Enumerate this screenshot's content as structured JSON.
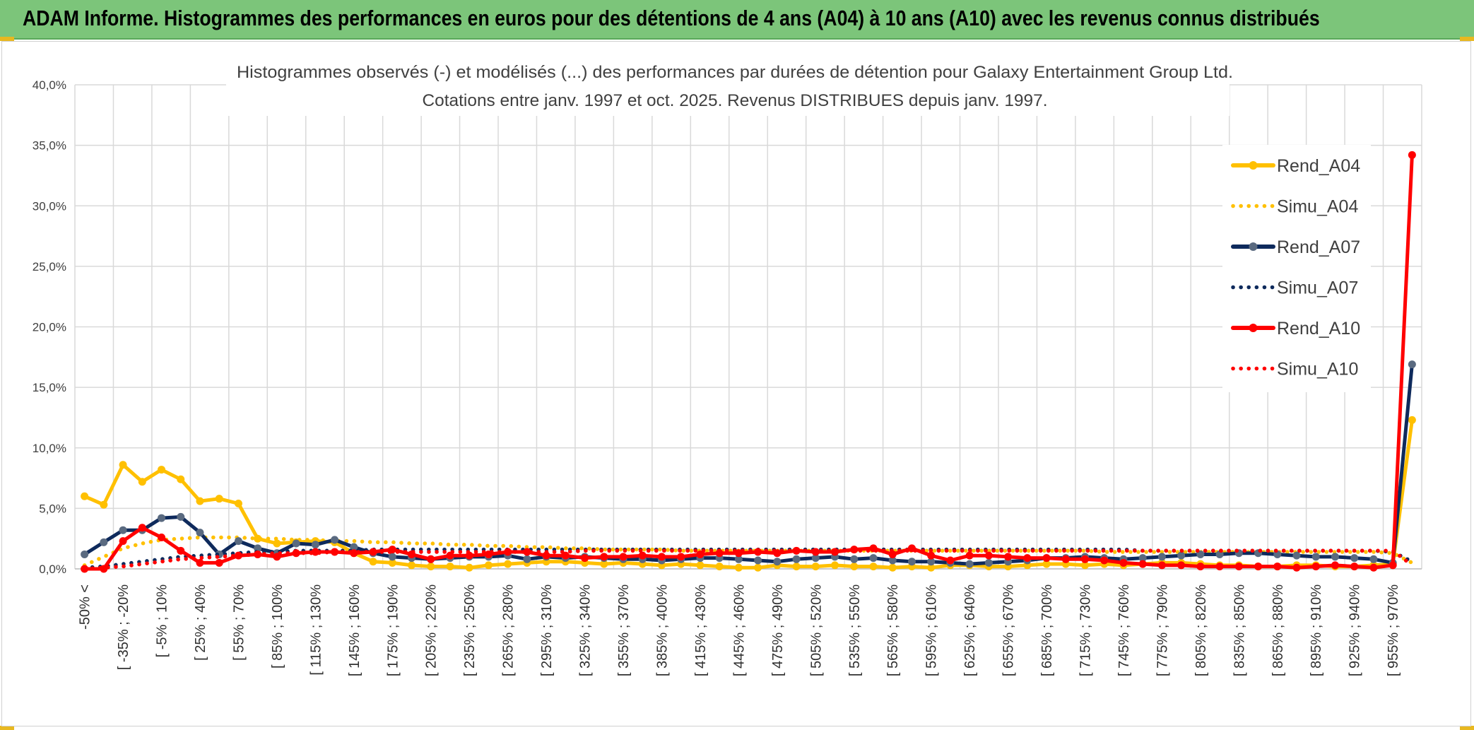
{
  "banner": {
    "title": "ADAM Informe. Histogrammes des performances en euros pour des détentions de 4 ans (A04) à 10 ans (A10) avec les revenus connus distribués"
  },
  "colors": {
    "banner_bg": "#7cc57a",
    "A04": "#ffc000",
    "A07": "#0e2a5c",
    "A07_marker": "#5a6a80",
    "A10": "#ff0000",
    "grid": "#d9d9d9"
  },
  "chart_data": {
    "type": "line",
    "title": "Histogrammes observés (-) et modélisés (...) des performances par durées de détention pour Galaxy Entertainment Group Ltd.",
    "subtitle": "Cotations entre janv. 1997 et oct. 2025. Revenus DISTRIBUES depuis janv. 1997.",
    "ylim": [
      0,
      40
    ],
    "yticks": [
      "0,0%",
      "5,0%",
      "10,0%",
      "15,0%",
      "20,0%",
      "25,0%",
      "30,0%",
      "35,0%",
      "40,0%"
    ],
    "xticklabels": [
      "-50% <",
      "[ -35% ; -20%",
      "[ -5% ; 10%",
      "[ 25% ; 40%",
      "[ 55% ; 70%",
      "[ 85% ; 100%",
      "[ 115% ; 130%",
      "[ 145% ; 160%",
      "[ 175% ; 190%",
      "[ 205% ; 220%",
      "[ 235% ; 250%",
      "[ 265% ; 280%",
      "[ 295% ; 310%",
      "[ 325% ; 340%",
      "[ 355% ; 370%",
      "[ 385% ; 400%",
      "[ 415% ; 430%",
      "[ 445% ; 460%",
      "[ 475% ; 490%",
      "[ 505% ; 520%",
      "[ 535% ; 550%",
      "[ 565% ; 580%",
      "[ 595% ; 610%",
      "[ 625% ; 640%",
      "[ 655% ; 670%",
      "[ 685% ; 700%",
      "[ 715% ; 730%",
      "[ 745% ; 760%",
      "[ 775% ; 790%",
      "[ 805% ; 820%",
      "[ 835% ; 850%",
      "[ 865% ; 880%",
      "[ 895% ; 910%",
      "[ 925% ; 940%",
      "[ 955% ; 970%"
    ],
    "n_points": 70,
    "series": [
      {
        "name": "Rend_A04",
        "style": "solid",
        "color": "#ffc000",
        "values": [
          6.0,
          5.3,
          8.6,
          7.2,
          8.2,
          7.4,
          5.6,
          5.8,
          5.4,
          2.5,
          2.1,
          2.2,
          2.3,
          2.2,
          1.3,
          0.6,
          0.5,
          0.3,
          0.2,
          0.2,
          0.1,
          0.3,
          0.4,
          0.5,
          0.6,
          0.6,
          0.5,
          0.4,
          0.5,
          0.4,
          0.3,
          0.4,
          0.3,
          0.2,
          0.1,
          0.1,
          0.3,
          0.2,
          0.2,
          0.3,
          0.2,
          0.2,
          0.1,
          0.2,
          0.1,
          0.3,
          0.3,
          0.2,
          0.2,
          0.3,
          0.4,
          0.4,
          0.3,
          0.4,
          0.3,
          0.4,
          0.5,
          0.5,
          0.4,
          0.3,
          0.3,
          0.2,
          0.2,
          0.3,
          0.3,
          0.2,
          0.2,
          0.3,
          0.4,
          12.3
        ]
      },
      {
        "name": "Simu_A04",
        "style": "dotted",
        "color": "#ffc000",
        "values": [
          0.3,
          1.0,
          1.7,
          2.1,
          2.4,
          2.5,
          2.6,
          2.6,
          2.6,
          2.5,
          2.5,
          2.4,
          2.4,
          2.3,
          2.3,
          2.2,
          2.2,
          2.1,
          2.1,
          2.0,
          2.0,
          1.9,
          1.9,
          1.8,
          1.8,
          1.7,
          1.7,
          1.6,
          1.6,
          1.6,
          1.6,
          1.5,
          1.5,
          1.5,
          1.5,
          1.5,
          1.5,
          1.5,
          1.5,
          1.5,
          1.5,
          1.5,
          1.5,
          1.5,
          1.5,
          1.5,
          1.5,
          1.5,
          1.5,
          1.5,
          1.5,
          1.5,
          1.5,
          1.4,
          1.4,
          1.4,
          1.4,
          1.4,
          1.4,
          1.4,
          1.4,
          1.4,
          1.4,
          1.4,
          1.4,
          1.4,
          1.4,
          1.4,
          1.3,
          0.5
        ]
      },
      {
        "name": "Rend_A07",
        "style": "solid",
        "color": "#0e2a5c",
        "values": [
          1.2,
          2.2,
          3.2,
          3.2,
          4.2,
          4.3,
          3.0,
          1.2,
          2.3,
          1.7,
          1.3,
          2.1,
          2.0,
          2.4,
          1.8,
          1.3,
          1.0,
          0.9,
          0.8,
          0.9,
          1.0,
          1.0,
          1.1,
          0.8,
          1.0,
          0.9,
          1.0,
          0.9,
          0.8,
          0.8,
          0.7,
          0.8,
          0.9,
          0.9,
          0.8,
          0.7,
          0.6,
          0.8,
          0.9,
          1.0,
          0.8,
          0.9,
          0.7,
          0.6,
          0.6,
          0.5,
          0.4,
          0.5,
          0.6,
          0.7,
          0.9,
          0.9,
          1.0,
          0.9,
          0.8,
          0.9,
          1.0,
          1.1,
          1.2,
          1.2,
          1.3,
          1.3,
          1.2,
          1.1,
          1.0,
          1.0,
          0.9,
          0.8,
          0.5,
          16.9
        ]
      },
      {
        "name": "Simu_A07",
        "style": "dotted",
        "color": "#0e2a5c",
        "values": [
          0.1,
          0.2,
          0.4,
          0.6,
          0.8,
          1.0,
          1.1,
          1.2,
          1.3,
          1.4,
          1.4,
          1.5,
          1.5,
          1.5,
          1.5,
          1.6,
          1.6,
          1.6,
          1.6,
          1.6,
          1.6,
          1.6,
          1.6,
          1.6,
          1.6,
          1.6,
          1.6,
          1.6,
          1.6,
          1.6,
          1.6,
          1.6,
          1.6,
          1.6,
          1.6,
          1.6,
          1.6,
          1.6,
          1.6,
          1.6,
          1.6,
          1.6,
          1.6,
          1.6,
          1.6,
          1.6,
          1.6,
          1.6,
          1.6,
          1.6,
          1.6,
          1.6,
          1.6,
          1.6,
          1.6,
          1.5,
          1.5,
          1.5,
          1.5,
          1.5,
          1.5,
          1.5,
          1.5,
          1.5,
          1.5,
          1.5,
          1.5,
          1.5,
          1.4,
          0.6
        ]
      },
      {
        "name": "Rend_A10",
        "style": "solid",
        "color": "#ff0000",
        "values": [
          0.0,
          0.0,
          2.3,
          3.4,
          2.6,
          1.5,
          0.5,
          0.5,
          1.1,
          1.2,
          1.0,
          1.3,
          1.4,
          1.4,
          1.3,
          1.4,
          1.6,
          1.2,
          0.8,
          1.1,
          1.1,
          1.2,
          1.4,
          1.4,
          1.1,
          1.1,
          0.9,
          1.0,
          1.0,
          1.1,
          1.0,
          1.0,
          1.2,
          1.3,
          1.3,
          1.4,
          1.3,
          1.5,
          1.4,
          1.4,
          1.6,
          1.7,
          1.2,
          1.7,
          1.1,
          0.7,
          1.1,
          1.1,
          1.0,
          0.9,
          0.9,
          0.8,
          0.8,
          0.7,
          0.5,
          0.4,
          0.3,
          0.3,
          0.2,
          0.2,
          0.2,
          0.2,
          0.2,
          0.1,
          0.2,
          0.3,
          0.2,
          0.1,
          0.3,
          34.2
        ]
      },
      {
        "name": "Simu_A10",
        "style": "dotted",
        "color": "#ff0000",
        "values": [
          0.0,
          0.1,
          0.2,
          0.4,
          0.6,
          0.8,
          0.9,
          1.0,
          1.1,
          1.2,
          1.3,
          1.3,
          1.3,
          1.4,
          1.4,
          1.4,
          1.4,
          1.4,
          1.4,
          1.4,
          1.4,
          1.4,
          1.4,
          1.4,
          1.4,
          1.4,
          1.5,
          1.5,
          1.5,
          1.5,
          1.5,
          1.5,
          1.5,
          1.5,
          1.5,
          1.5,
          1.5,
          1.5,
          1.5,
          1.5,
          1.5,
          1.5,
          1.5,
          1.5,
          1.5,
          1.5,
          1.5,
          1.5,
          1.5,
          1.5,
          1.5,
          1.5,
          1.5,
          1.5,
          1.5,
          1.5,
          1.5,
          1.5,
          1.5,
          1.5,
          1.5,
          1.5,
          1.5,
          1.5,
          1.5,
          1.5,
          1.5,
          1.5,
          1.5,
          0.3
        ]
      }
    ],
    "legend": [
      "Rend_A04",
      "Simu_A04",
      "Rend_A07",
      "Simu_A07",
      "Rend_A10",
      "Simu_A10"
    ],
    "legend_position": "right"
  }
}
